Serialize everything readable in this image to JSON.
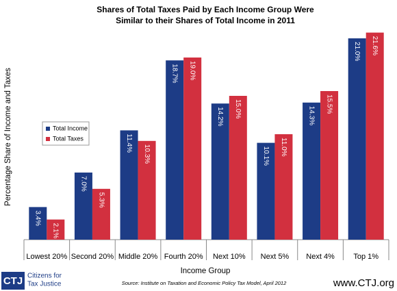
{
  "chart_data": {
    "type": "bar",
    "title": [
      "Shares of Total Taxes Paid by Each Income Group Were",
      "Similar to their Shares of Total Income in 2011"
    ],
    "x_label": "Income Group",
    "y_label": "Percentage Share of Income and Taxes",
    "categories": [
      "Lowest 20%",
      "Second 20%",
      "Middle 20%",
      "Fourth 20%",
      "Next 10%",
      "Next 5%",
      "Next 4%",
      "Top 1%"
    ],
    "series": [
      {
        "name": "Total Income",
        "color": "#1d3c86",
        "values": [
          3.4,
          7.0,
          11.4,
          18.7,
          14.2,
          10.1,
          14.3,
          21.0
        ],
        "value_labels": [
          "3.4%",
          "7.0%",
          "11.4%",
          "18.7%",
          "14.2%",
          "10.1%",
          "14.3%",
          "21.0%"
        ]
      },
      {
        "name": "Total Taxes",
        "color": "#d2303f",
        "values": [
          2.1,
          5.3,
          10.3,
          19.0,
          15.0,
          11.0,
          15.5,
          21.6
        ],
        "value_labels": [
          "2.1%",
          "5.3%",
          "10.3%",
          "19.0%",
          "15.0%",
          "11.0%",
          "15.5%",
          "21.6%"
        ]
      }
    ],
    "legend": "left",
    "source": "Source: Institute on Taxation and Economic Policy Tax Model, April 2012",
    "logo": "CTJ",
    "organization": [
      "Citizens for",
      "Tax Justice"
    ],
    "website": "www.CTJ.org"
  }
}
